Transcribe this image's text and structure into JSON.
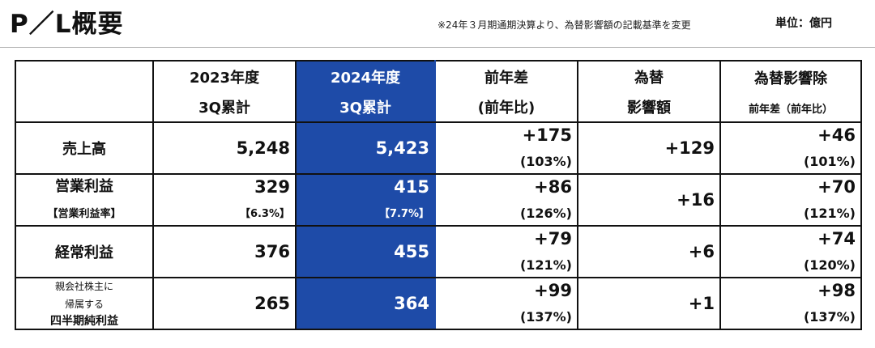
{
  "header": {
    "title": "P／L概要",
    "note": "※24年３月期通期決算より、為替影響額の記載基準を変更",
    "unit": "単位：億円"
  },
  "table": {
    "columns": [
      {
        "line1": "",
        "line2": ""
      },
      {
        "line1": "2023年度",
        "line2": "3Q累計"
      },
      {
        "line1": "2024年度",
        "line2": "3Q累計"
      },
      {
        "line1": "前年差",
        "line2": "(前年比)"
      },
      {
        "line1": "為替",
        "line2": "影響額"
      },
      {
        "line1": "為替影響除",
        "line2": "前年差（前年比）"
      }
    ],
    "rows": [
      {
        "label1": "売上高",
        "label2": "",
        "label3": "",
        "v2023": "5,248",
        "v2023_sub": "",
        "v2024": "5,423",
        "v2024_sub": "",
        "diff": "+175",
        "diff_pct": "(103%)",
        "fx": "+129",
        "ex": "+46",
        "ex_pct": "(101%)"
      },
      {
        "label1": "営業利益",
        "label2": "【営業利益率】",
        "label3": "",
        "v2023": "329",
        "v2023_sub": "【6.3%】",
        "v2024": "415",
        "v2024_sub": "【7.7%】",
        "diff": "+86",
        "diff_pct": "(126%)",
        "fx": "+16",
        "ex": "+70",
        "ex_pct": "(121%)"
      },
      {
        "label1": "経常利益",
        "label2": "",
        "label3": "",
        "v2023": "376",
        "v2023_sub": "",
        "v2024": "455",
        "v2024_sub": "",
        "diff": "+79",
        "diff_pct": "(121%)",
        "fx": "+6",
        "ex": "+74",
        "ex_pct": "(120%)"
      },
      {
        "label1": "親会社株主に",
        "label2": "帰属する",
        "label3": "四半期純利益",
        "v2023": "265",
        "v2023_sub": "",
        "v2024": "364",
        "v2024_sub": "",
        "diff": "+99",
        "diff_pct": "(137%)",
        "fx": "+1",
        "ex": "+98",
        "ex_pct": "(137%)"
      }
    ]
  },
  "colors": {
    "highlight": "#1e4ba8",
    "border": "#111111"
  }
}
